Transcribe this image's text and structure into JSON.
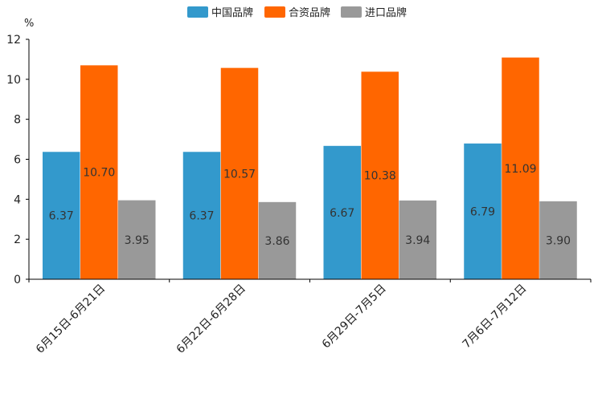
{
  "chart_data": {
    "type": "bar",
    "unit": "%",
    "categories": [
      "6月15日-6月21日",
      "6月22日-6月28日",
      "6月29日-7月5日",
      "7月6日-7月12日"
    ],
    "series": [
      {
        "name": "中国品牌",
        "color": "#3399cc",
        "values": [
          6.37,
          6.37,
          6.67,
          6.79
        ],
        "labels": [
          "6.37",
          "6.37",
          "6.67",
          "6.79"
        ]
      },
      {
        "name": "合资品牌",
        "color": "#ff6600",
        "values": [
          10.7,
          10.57,
          10.38,
          11.09
        ],
        "labels": [
          "10.70",
          "10.57",
          "10.38",
          "11.09"
        ]
      },
      {
        "name": "进口品牌",
        "color": "#999999",
        "values": [
          3.95,
          3.86,
          3.94,
          3.9
        ],
        "labels": [
          "3.95",
          "3.86",
          "3.94",
          "3.90"
        ]
      }
    ],
    "ylim": [
      0,
      12
    ],
    "yticks": [
      0,
      2,
      4,
      6,
      8,
      10,
      12
    ],
    "ytick_labels": [
      "0",
      "2",
      "4",
      "6",
      "8",
      "10",
      "12"
    ],
    "legend_position": "top-center",
    "grid": false
  }
}
